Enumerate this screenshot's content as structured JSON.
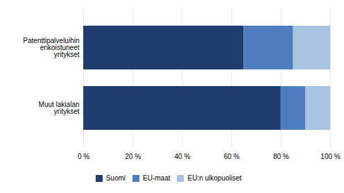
{
  "chart_data": {
    "type": "bar",
    "orientation": "horizontal",
    "stacked": true,
    "categories": [
      "Patenttipalveluihin\nerikoistuneet\nyritykset",
      "Muut lakialan\nyritykset"
    ],
    "series": [
      {
        "name": "Suomi",
        "color": "#1F3D6E",
        "values": [
          65,
          80
        ]
      },
      {
        "name": "EU-maat",
        "color": "#4F7EC0",
        "values": [
          20,
          10
        ]
      },
      {
        "name": "EU:n ulkopuoliset",
        "color": "#A8C4E0",
        "values": [
          15,
          10
        ]
      }
    ],
    "xlim": [
      0,
      100
    ],
    "xticks": [
      {
        "value": 0,
        "label": "0 %"
      },
      {
        "value": 20,
        "label": "20 %"
      },
      {
        "value": 40,
        "label": "40 %"
      },
      {
        "value": 60,
        "label": "60 %"
      },
      {
        "value": 80,
        "label": "80 %"
      },
      {
        "value": 100,
        "label": "100 %"
      }
    ],
    "grid": true,
    "legend": "bottom"
  }
}
